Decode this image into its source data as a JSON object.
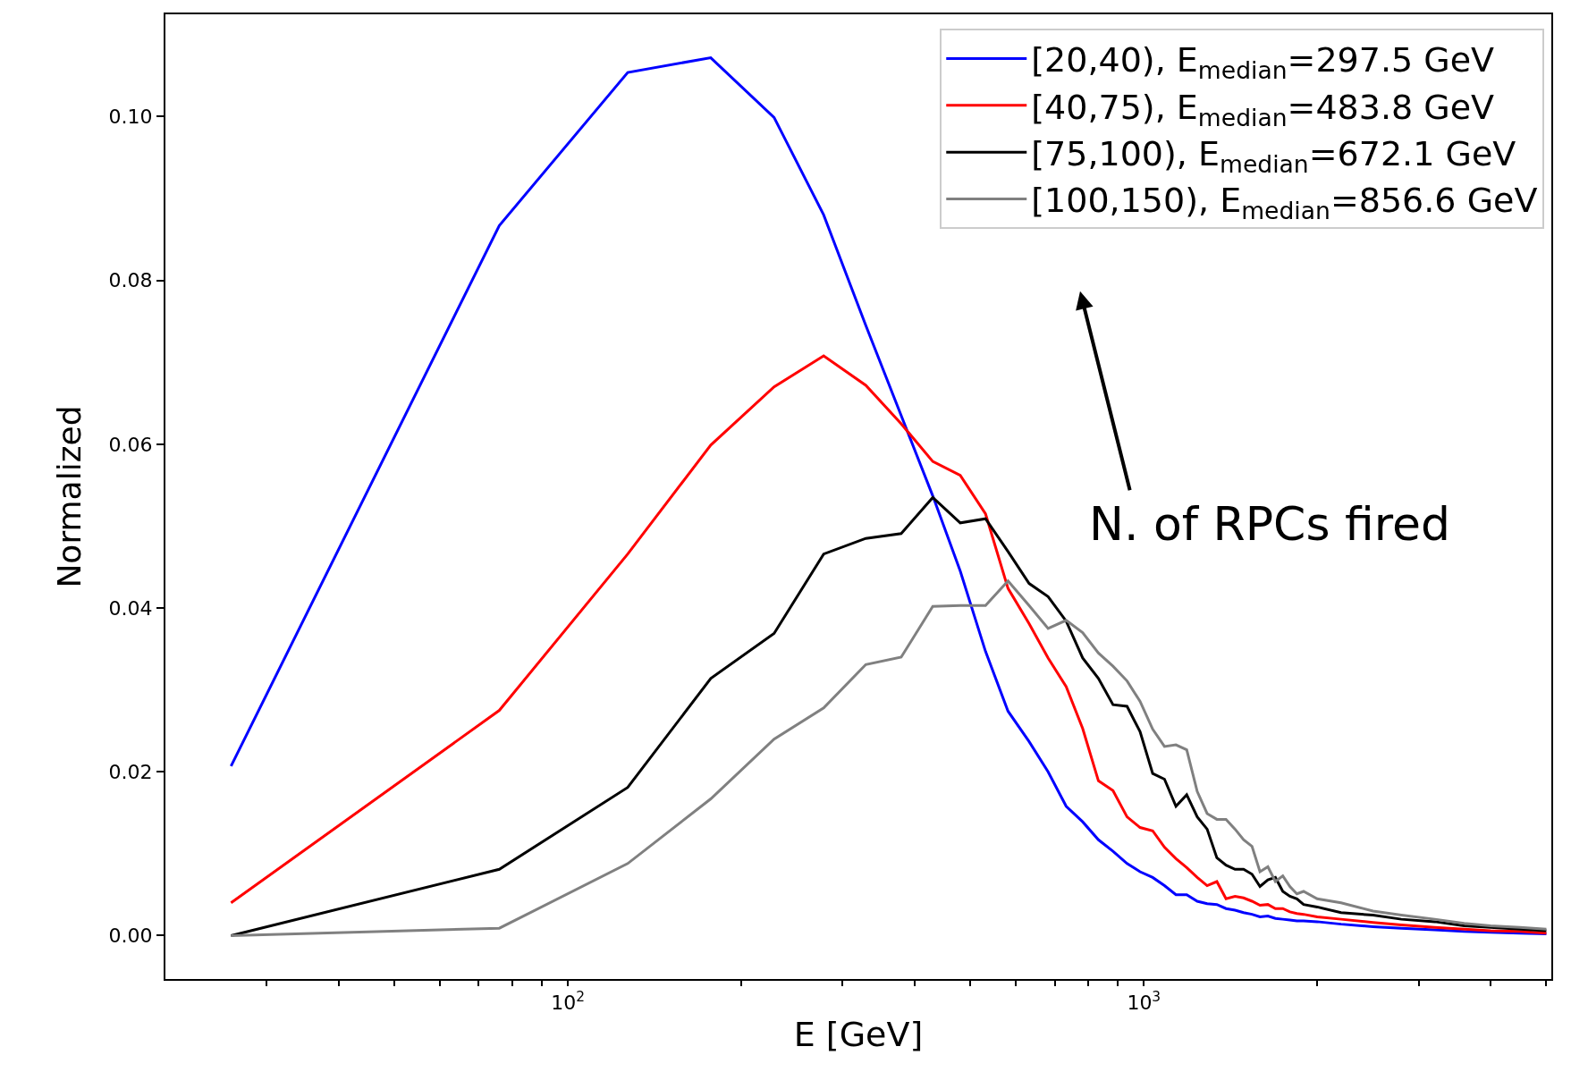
{
  "chart_data": {
    "type": "line",
    "xlabel": "E [GeV]",
    "ylabel": "Normalized",
    "log": "x",
    "grid": false,
    "legend": "top right",
    "marker": "none",
    "line_style": "solid",
    "x": [
      26,
      76,
      127,
      177,
      228,
      278,
      329,
      379,
      430,
      480,
      531,
      581,
      632,
      682,
      733,
      783,
      834,
      884,
      935,
      985,
      1036,
      1086,
      1137,
      1187,
      1238,
      1288,
      1339,
      1389,
      1440,
      1490,
      1541,
      1591,
      1642,
      1692,
      1743,
      1793,
      1844,
      1894,
      2000,
      2200,
      2500,
      2800,
      3200,
      3600,
      4000,
      4500,
      5000
    ],
    "xlim": [
      20,
      5100
    ],
    "xticks": [
      {
        "value": 30,
        "label": null
      },
      {
        "value": 40,
        "label": null
      },
      {
        "value": 50,
        "label": null
      },
      {
        "value": 60,
        "label": null
      },
      {
        "value": 70,
        "label": null
      },
      {
        "value": 80,
        "label": null
      },
      {
        "value": 90,
        "label": null
      },
      {
        "value": 100,
        "label": "10$^{2}$"
      },
      {
        "value": 200,
        "label": null
      },
      {
        "value": 300,
        "label": null
      },
      {
        "value": 400,
        "label": null
      },
      {
        "value": 500,
        "label": null
      },
      {
        "value": 600,
        "label": null
      },
      {
        "value": 700,
        "label": null
      },
      {
        "value": 800,
        "label": null
      },
      {
        "value": 900,
        "label": null
      },
      {
        "value": 1000,
        "label": "10$^{3}$"
      },
      {
        "value": 2000,
        "label": null
      },
      {
        "value": 3000,
        "label": null
      },
      {
        "value": 4000,
        "label": null
      },
      {
        "value": 5000,
        "label": null
      }
    ],
    "ylim": [
      -0.0053,
      0.1125
    ],
    "yticks": [
      {
        "value": 0,
        "label": "0.00"
      },
      {
        "value": 0.02,
        "label": "0.02"
      },
      {
        "value": 0.04,
        "label": "0.04"
      },
      {
        "value": 0.06,
        "label": "0.06"
      },
      {
        "value": 0.08,
        "label": "0.08"
      },
      {
        "value": 0.1,
        "label": "0.10"
      }
    ],
    "annotations": [
      "N. of RPCs fired"
    ],
    "series": [
      {
        "name": "[20,40), E$_{median}$=297.5 GeV",
        "color": "#0000ff",
        "values": [
          0.0207,
          0.0867,
          0.1054,
          0.1072,
          0.0999,
          0.088,
          0.0745,
          0.0635,
          0.0537,
          0.0445,
          0.0347,
          0.0274,
          0.0237,
          0.02,
          0.0158,
          0.0139,
          0.0117,
          0.0103,
          0.0088,
          0.0078,
          0.0071,
          0.0061,
          0.005,
          0.005,
          0.0042,
          0.0039,
          0.0038,
          0.0033,
          0.0031,
          0.0028,
          0.0026,
          0.0023,
          0.0024,
          0.0021,
          0.002,
          0.0019,
          0.0018,
          0.0018,
          0.0017,
          0.0014,
          0.0011,
          0.0009,
          0.0007,
          0.0005,
          0.0004,
          0.0003,
          0.0002
        ]
      },
      {
        "name": "[40,75), E$_{median}$=483.8 GeV",
        "color": "#ff0000",
        "values": [
          0.004,
          0.0275,
          0.0466,
          0.0599,
          0.067,
          0.0708,
          0.0672,
          0.0625,
          0.0579,
          0.0562,
          0.0515,
          0.0424,
          0.0381,
          0.0339,
          0.0304,
          0.0253,
          0.0189,
          0.0177,
          0.0145,
          0.0132,
          0.0128,
          0.0108,
          0.0094,
          0.0083,
          0.0071,
          0.0061,
          0.0066,
          0.0045,
          0.0048,
          0.0046,
          0.0042,
          0.0037,
          0.0038,
          0.0033,
          0.0033,
          0.0029,
          0.0027,
          0.0026,
          0.0023,
          0.002,
          0.0016,
          0.0013,
          0.001,
          0.0008,
          0.0006,
          0.0005,
          0.0003
        ]
      },
      {
        "name": "[75,100), E$_{median}$=672.1 GeV",
        "color": "#000000",
        "values": [
          0.0,
          0.0081,
          0.0181,
          0.0314,
          0.0369,
          0.0466,
          0.0485,
          0.0491,
          0.0535,
          0.0504,
          0.0509,
          0.0469,
          0.043,
          0.0414,
          0.0384,
          0.0339,
          0.0314,
          0.0282,
          0.028,
          0.0249,
          0.0198,
          0.0191,
          0.0158,
          0.0172,
          0.0145,
          0.013,
          0.0095,
          0.0086,
          0.0081,
          0.0081,
          0.0075,
          0.006,
          0.0068,
          0.0071,
          0.0054,
          0.0048,
          0.0045,
          0.0038,
          0.0035,
          0.0028,
          0.0025,
          0.002,
          0.0017,
          0.0012,
          0.001,
          0.0008,
          0.0006
        ]
      },
      {
        "name": "[100,150), E$_{median}$=856.6 GeV",
        "color": "#808080",
        "values": [
          0.0,
          0.0009,
          0.0088,
          0.0167,
          0.024,
          0.0278,
          0.0331,
          0.034,
          0.0402,
          0.0403,
          0.0403,
          0.0433,
          0.0403,
          0.0375,
          0.0385,
          0.037,
          0.0345,
          0.0329,
          0.0311,
          0.0286,
          0.0252,
          0.0231,
          0.0233,
          0.0227,
          0.0176,
          0.0149,
          0.0142,
          0.0142,
          0.013,
          0.0117,
          0.0109,
          0.0078,
          0.0084,
          0.0066,
          0.0073,
          0.006,
          0.0051,
          0.0054,
          0.0045,
          0.004,
          0.003,
          0.0025,
          0.002,
          0.0015,
          0.0012,
          0.001,
          0.0008
        ]
      }
    ]
  }
}
